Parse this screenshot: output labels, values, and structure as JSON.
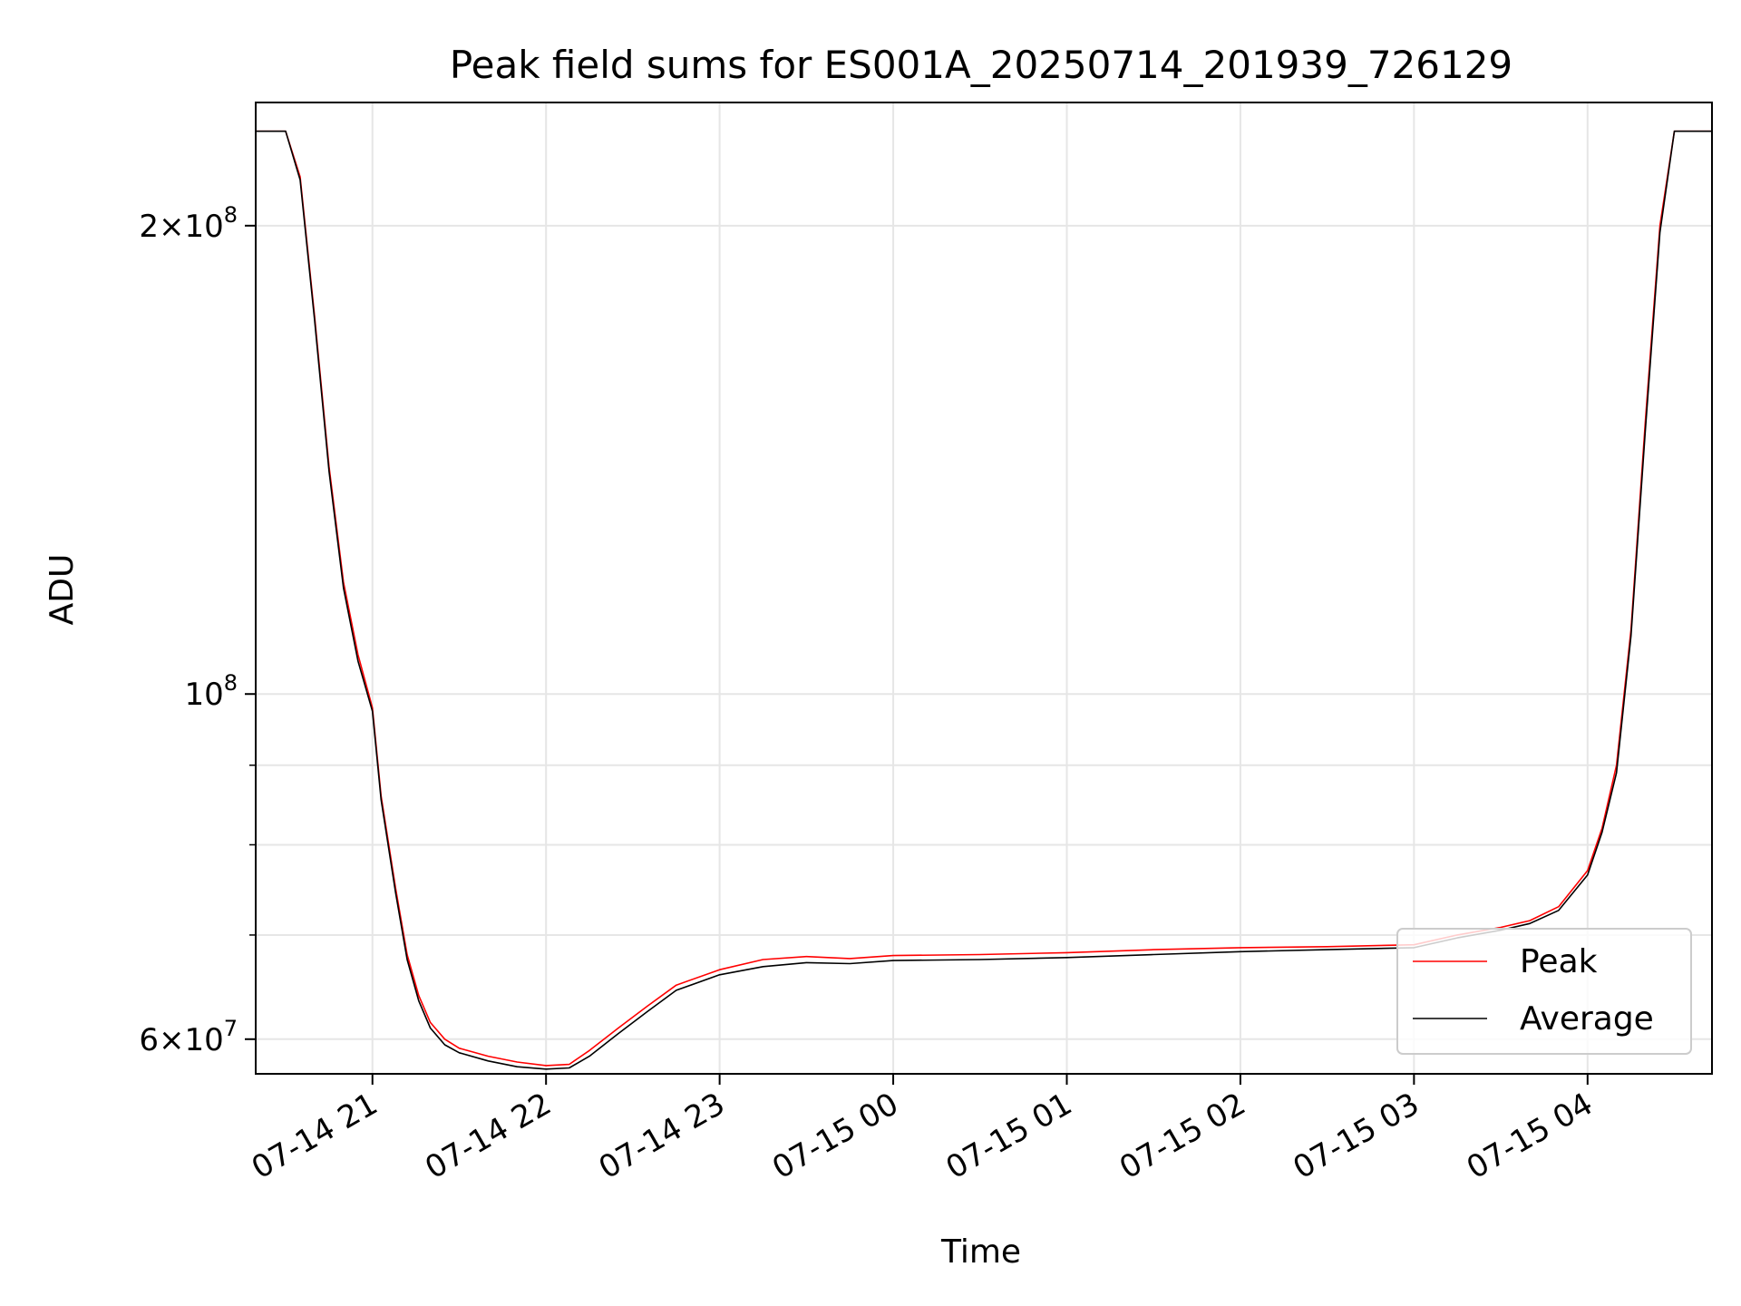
{
  "chart_data": {
    "type": "line",
    "title": "Peak field sums for ES001A_20250714_201939_726129",
    "xlabel": "Time",
    "ylabel": "ADU",
    "yscale": "log",
    "xlim": [
      "2025-07-14 20:19:39",
      "2025-07-15 04:43:00"
    ],
    "ylim": [
      57000000,
      240000000
    ],
    "grid": true,
    "legend": "lower-right",
    "x_ticks": [
      {
        "t": "2025-07-14 21:00",
        "label": "07-14 21"
      },
      {
        "t": "2025-07-14 22:00",
        "label": "07-14 22"
      },
      {
        "t": "2025-07-14 23:00",
        "label": "07-14 23"
      },
      {
        "t": "2025-07-15 00:00",
        "label": "07-15 00"
      },
      {
        "t": "2025-07-15 01:00",
        "label": "07-15 01"
      },
      {
        "t": "2025-07-15 02:00",
        "label": "07-15 02"
      },
      {
        "t": "2025-07-15 03:00",
        "label": "07-15 03"
      },
      {
        "t": "2025-07-15 04:00",
        "label": "07-15 04"
      }
    ],
    "y_ticks": [
      {
        "value": 60000000,
        "base": "6",
        "exp": "7"
      },
      {
        "value": 100000000,
        "base": "",
        "exp": "8"
      },
      {
        "value": 200000000,
        "base": "2",
        "exp": "8"
      }
    ],
    "y_minor_grid": [
      70000000,
      80000000,
      90000000
    ],
    "series": [
      {
        "name": "Peak",
        "color": "#ff0000",
        "x": [
          "2025-07-14 20:19:39",
          "2025-07-14 20:30",
          "2025-07-14 20:35",
          "2025-07-14 20:40",
          "2025-07-14 20:45",
          "2025-07-14 20:50",
          "2025-07-14 20:55",
          "2025-07-14 21:00",
          "2025-07-14 21:03",
          "2025-07-14 21:08",
          "2025-07-14 21:12",
          "2025-07-14 21:16",
          "2025-07-14 21:20",
          "2025-07-14 21:25",
          "2025-07-14 21:30",
          "2025-07-14 21:40",
          "2025-07-14 21:50",
          "2025-07-14 22:00",
          "2025-07-14 22:08",
          "2025-07-14 22:15",
          "2025-07-14 22:25",
          "2025-07-14 22:35",
          "2025-07-14 22:45",
          "2025-07-14 23:00",
          "2025-07-14 23:15",
          "2025-07-14 23:30",
          "2025-07-14 23:45",
          "2025-07-15 00:00",
          "2025-07-15 00:30",
          "2025-07-15 01:00",
          "2025-07-15 01:30",
          "2025-07-15 02:00",
          "2025-07-15 02:30",
          "2025-07-15 03:00",
          "2025-07-15 03:15",
          "2025-07-15 03:30",
          "2025-07-15 03:40",
          "2025-07-15 03:50",
          "2025-07-15 04:00",
          "2025-07-15 04:05",
          "2025-07-15 04:10",
          "2025-07-15 04:15",
          "2025-07-15 04:20",
          "2025-07-15 04:25",
          "2025-07-15 04:30",
          "2025-07-15 04:43"
        ],
        "values": [
          230000000,
          230000000,
          215000000,
          175000000,
          140000000,
          118000000,
          106000000,
          98000000,
          86000000,
          75000000,
          68000000,
          64000000,
          61500000,
          60000000,
          59200000,
          58500000,
          58000000,
          57700000,
          57800000,
          59000000,
          61000000,
          63000000,
          65000000,
          66500000,
          67500000,
          67800000,
          67600000,
          67900000,
          68000000,
          68200000,
          68500000,
          68700000,
          68800000,
          69000000,
          70000000,
          70800000,
          71500000,
          73000000,
          77000000,
          82000000,
          90000000,
          110000000,
          150000000,
          200000000,
          230000000,
          230000000
        ]
      },
      {
        "name": "Average",
        "color": "#000000",
        "x": [
          "2025-07-14 20:19:39",
          "2025-07-14 20:30",
          "2025-07-14 20:35",
          "2025-07-14 20:40",
          "2025-07-14 20:45",
          "2025-07-14 20:50",
          "2025-07-14 20:55",
          "2025-07-14 21:00",
          "2025-07-14 21:03",
          "2025-07-14 21:08",
          "2025-07-14 21:12",
          "2025-07-14 21:16",
          "2025-07-14 21:20",
          "2025-07-14 21:25",
          "2025-07-14 21:30",
          "2025-07-14 21:40",
          "2025-07-14 21:50",
          "2025-07-14 22:00",
          "2025-07-14 22:08",
          "2025-07-14 22:15",
          "2025-07-14 22:25",
          "2025-07-14 22:35",
          "2025-07-14 22:45",
          "2025-07-14 23:00",
          "2025-07-14 23:15",
          "2025-07-14 23:30",
          "2025-07-14 23:45",
          "2025-07-15 00:00",
          "2025-07-15 00:30",
          "2025-07-15 01:00",
          "2025-07-15 01:30",
          "2025-07-15 02:00",
          "2025-07-15 02:30",
          "2025-07-15 03:00",
          "2025-07-15 03:15",
          "2025-07-15 03:30",
          "2025-07-15 03:40",
          "2025-07-15 03:50",
          "2025-07-15 04:00",
          "2025-07-15 04:05",
          "2025-07-15 04:10",
          "2025-07-15 04:15",
          "2025-07-15 04:20",
          "2025-07-15 04:25",
          "2025-07-15 04:30",
          "2025-07-15 04:43"
        ],
        "values": [
          230000000,
          230000000,
          214000000,
          174000000,
          139000000,
          117000000,
          105000000,
          97500000,
          85500000,
          74500000,
          67500000,
          63500000,
          61000000,
          59500000,
          58800000,
          58100000,
          57600000,
          57400000,
          57500000,
          58500000,
          60500000,
          62500000,
          64500000,
          66000000,
          66800000,
          67200000,
          67100000,
          67400000,
          67500000,
          67700000,
          68000000,
          68300000,
          68500000,
          68700000,
          69700000,
          70500000,
          71200000,
          72600000,
          76500000,
          81500000,
          89000000,
          109000000,
          148000000,
          198000000,
          230000000,
          230000000
        ]
      }
    ]
  }
}
